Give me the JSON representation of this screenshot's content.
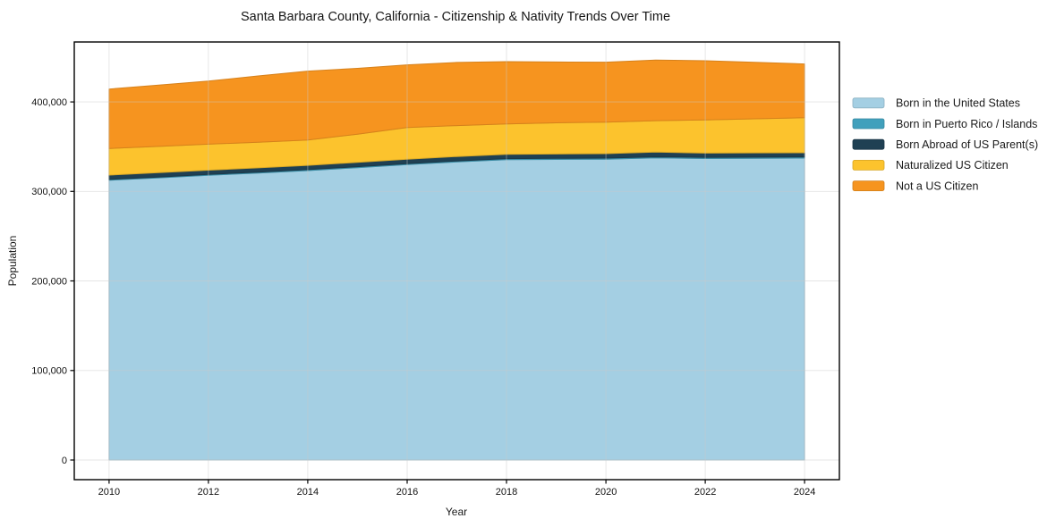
{
  "figure": {
    "background_color": "#ffffff",
    "spine_color": "#000000",
    "grid_color": "#c9c9c9"
  },
  "chart_data": {
    "type": "area",
    "stacked": true,
    "title": "Santa Barbara County, California - Citizenship & Nativity Trends Over Time",
    "xlabel": "Year",
    "ylabel": "Population",
    "grid": true,
    "legend_position": "right",
    "xlim": [
      2009.3,
      2024.7
    ],
    "ylim": [
      -22000,
      467000
    ],
    "x": [
      2010,
      2011,
      2012,
      2013,
      2014,
      2015,
      2016,
      2017,
      2018,
      2019,
      2020,
      2021,
      2022,
      2023,
      2024
    ],
    "xticks": [
      2010,
      2012,
      2014,
      2016,
      2018,
      2020,
      2022,
      2024
    ],
    "yticks": [
      0,
      100000,
      200000,
      300000,
      400000
    ],
    "ytick_labels": [
      "0",
      "100,000",
      "200,000",
      "300,000",
      "400,000"
    ],
    "series": [
      {
        "name": "Born in the United States",
        "color": "#a4cfe3",
        "values": [
          312500,
          315200,
          318000,
          320600,
          323300,
          326600,
          330000,
          333000,
          335500,
          335800,
          336100,
          337500,
          336800,
          337000,
          337300
        ]
      },
      {
        "name": "Born in Puerto Rico / Islands",
        "color": "#41a0bc",
        "values": [
          900,
          950,
          1000,
          1000,
          1050,
          1050,
          1100,
          1100,
          1150,
          1150,
          1200,
          1200,
          1250,
          1250,
          1300
        ]
      },
      {
        "name": "Born Abroad of US Parent(s)",
        "color": "#1f4053",
        "values": [
          4900,
          4850,
          4800,
          4800,
          4850,
          4900,
          4900,
          5000,
          4850,
          4900,
          4950,
          5300,
          4800,
          4900,
          4700
        ]
      },
      {
        "name": "Naturalized US Citizen",
        "color": "#fcc32d",
        "values": [
          29700,
          29350,
          29000,
          28650,
          28300,
          31500,
          35500,
          34500,
          34000,
          34800,
          35200,
          35100,
          37000,
          38000,
          39100
        ]
      },
      {
        "name": "Not a US Citizen",
        "color": "#f6941f",
        "values": [
          66400,
          68500,
          70500,
          74000,
          77000,
          73500,
          70000,
          70500,
          69500,
          68000,
          67000,
          67700,
          66200,
          63100,
          60100
        ]
      }
    ]
  }
}
